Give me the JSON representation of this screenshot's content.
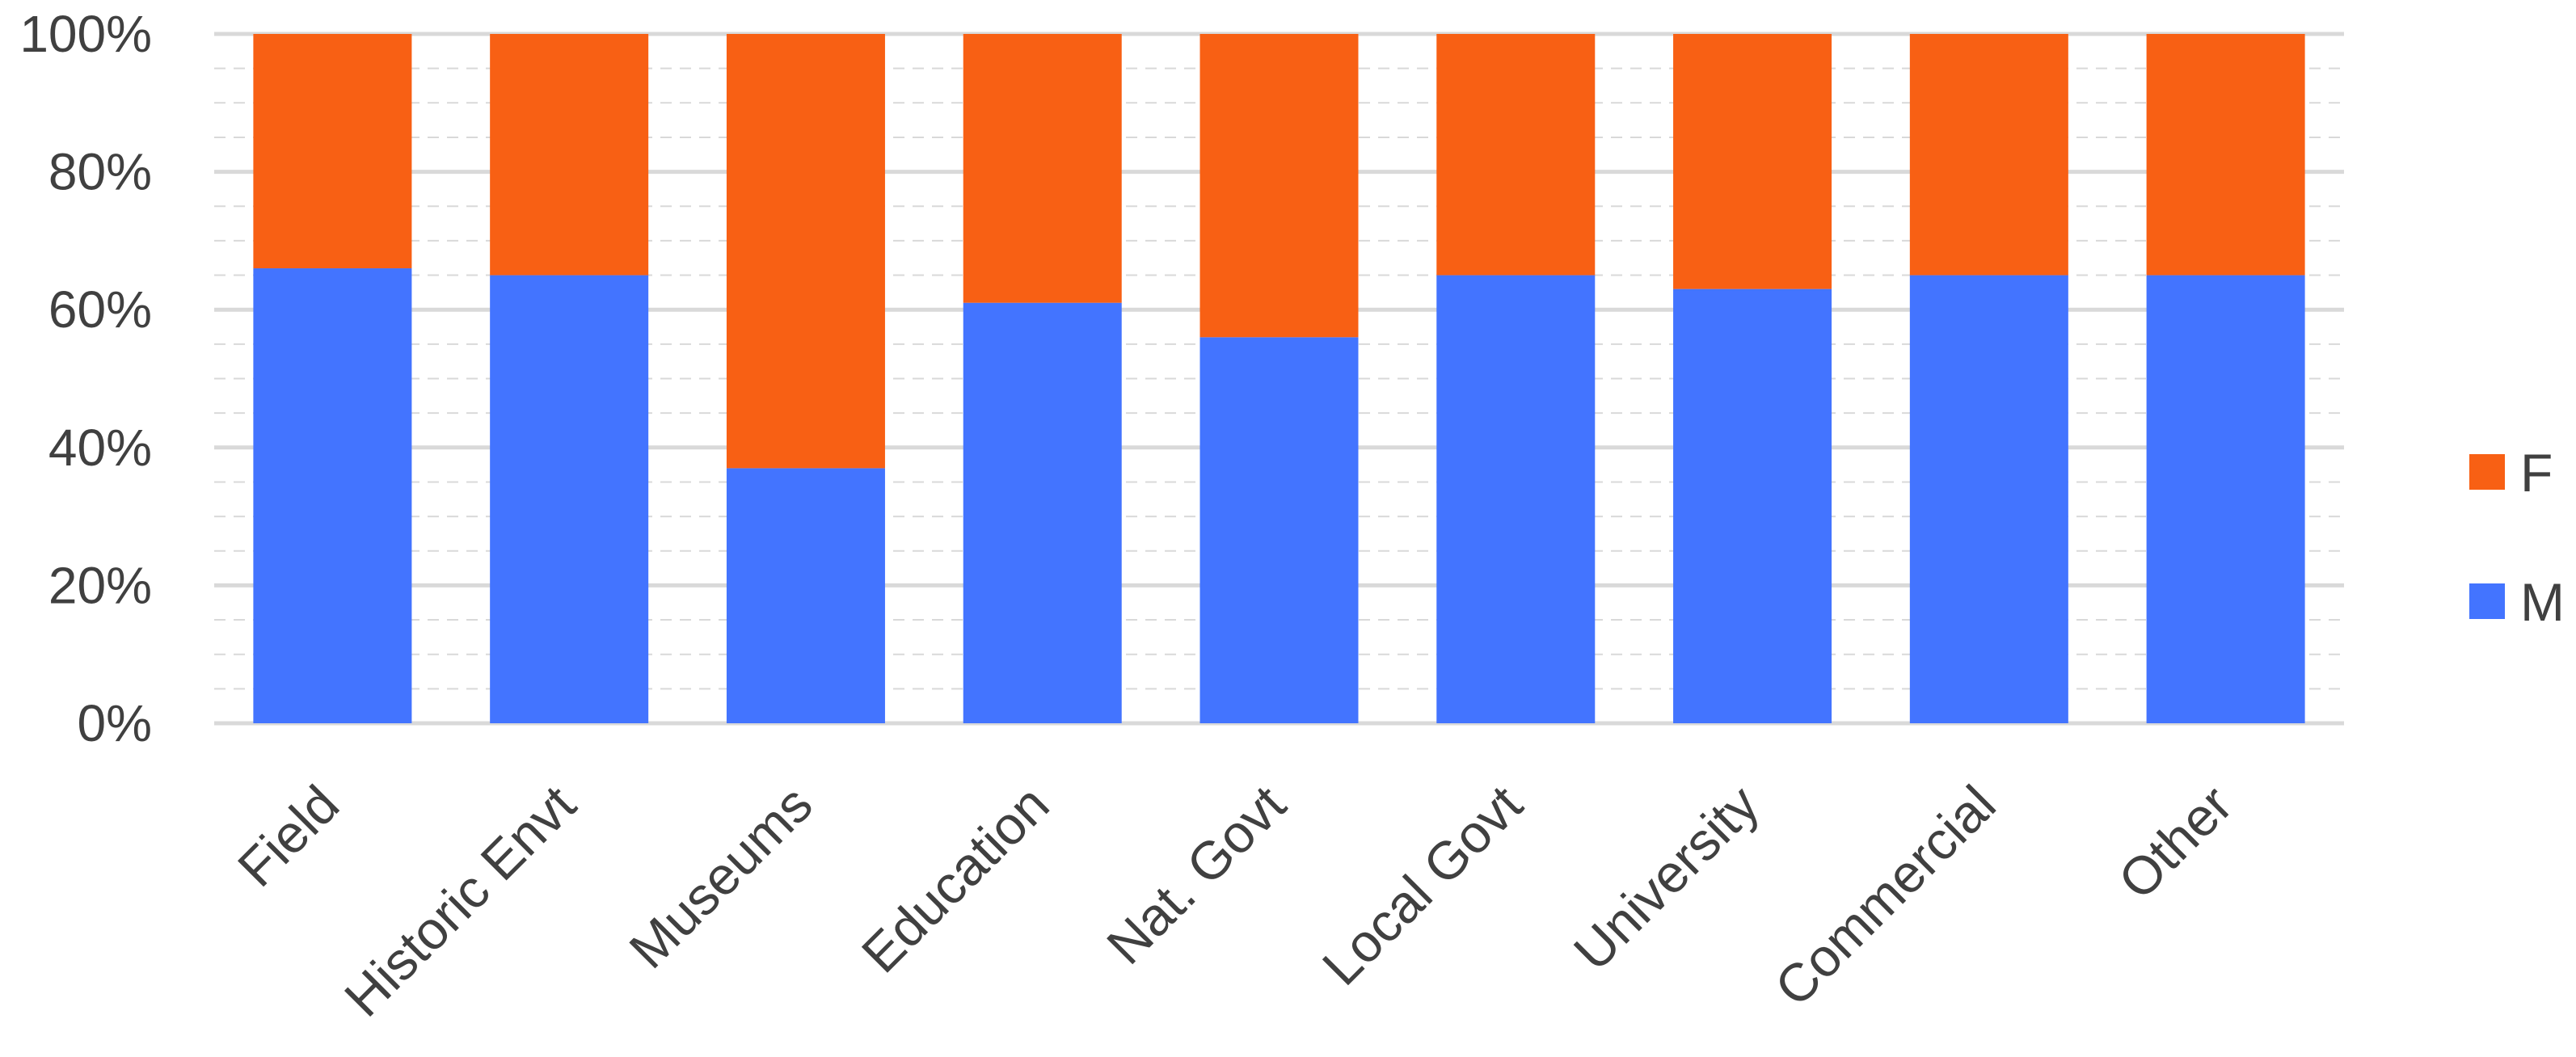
{
  "chart_data": {
    "type": "bar",
    "stacked": true,
    "percent": true,
    "categories": [
      "Field",
      "Historic Envt",
      "Museums",
      "Education",
      "Nat. Govt",
      "Local Govt",
      "University",
      "Commercial",
      "Other"
    ],
    "series": [
      {
        "name": "M",
        "values": [
          66,
          65,
          37,
          61,
          56,
          65,
          63,
          65,
          65
        ],
        "color": "#4374FF"
      },
      {
        "name": "F",
        "values": [
          34,
          35,
          63,
          39,
          44,
          35,
          37,
          35,
          35
        ],
        "color": "#F86014"
      }
    ],
    "ylim": [
      0,
      100
    ],
    "yticks": [
      "0%",
      "20%",
      "40%",
      "60%",
      "80%",
      "100%"
    ],
    "grid": true,
    "legend_position": "right",
    "legend_order": [
      "F",
      "M"
    ],
    "colors": {
      "gridline": "#D9D9D9",
      "text": "#404040"
    }
  }
}
